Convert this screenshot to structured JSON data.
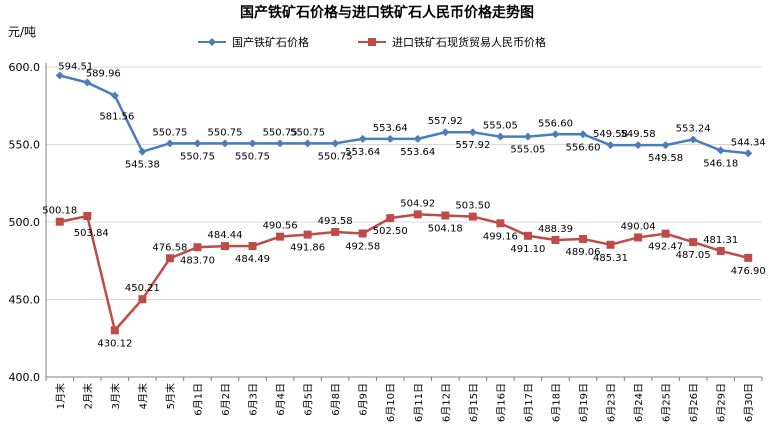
{
  "chart_data": {
    "type": "line",
    "title": "国产铁矿石价格与进口铁矿石人民币价格走势图",
    "ylabel": "元/吨",
    "xlabel": "",
    "ylim": [
      400,
      600
    ],
    "yticks": [
      "400.0",
      "450.0",
      "500.0",
      "550.0",
      "600.0"
    ],
    "grid": true,
    "legend_position": "top",
    "categories": [
      "1月末",
      "2月末",
      "3月末",
      "4月末",
      "5月末",
      "6月1日",
      "6月2日",
      "6月3日",
      "6月4日",
      "6月5日",
      "6月8日",
      "6月9日",
      "6月10日",
      "6月11日",
      "6月12日",
      "6月15日",
      "6月16日",
      "6月17日",
      "6月18日",
      "6月19日",
      "6月23日",
      "6月24日",
      "6月25日",
      "6月26日",
      "6月29日",
      "6月30日"
    ],
    "series": [
      {
        "name": "国产铁矿石价格",
        "color": "#4a7ebb",
        "marker": "diamond",
        "values": [
          594.51,
          589.96,
          581.56,
          545.38,
          550.75,
          550.75,
          550.75,
          550.75,
          550.75,
          550.75,
          550.75,
          553.64,
          553.64,
          553.64,
          557.92,
          557.92,
          555.05,
          555.05,
          556.6,
          556.6,
          549.58,
          549.58,
          549.58,
          553.24,
          546.18,
          544.34
        ],
        "labels": [
          "594.51",
          "589.96",
          "581.56",
          "545.38",
          "550.75",
          "550.75",
          "550.75",
          "550.75",
          "550.75",
          "550.75",
          "550.75",
          "553.64",
          "553.64",
          "553.64",
          "557.92",
          "557.92",
          "555.05",
          "555.05",
          "556.60",
          "556.60",
          "549.58",
          "549.58",
          "549.58",
          "553.24",
          "546.18",
          "544.34"
        ]
      },
      {
        "name": "进口铁矿石现货贸易人民币价格",
        "color": "#be4b48",
        "marker": "square",
        "values": [
          500.18,
          503.84,
          430.12,
          450.21,
          476.58,
          483.7,
          484.44,
          484.49,
          490.56,
          491.86,
          493.58,
          492.58,
          502.5,
          504.92,
          504.18,
          503.5,
          499.16,
          491.1,
          488.39,
          489.06,
          485.31,
          490.04,
          492.47,
          487.05,
          481.31,
          476.9
        ],
        "labels": [
          "500.18",
          "503.84",
          "430.12",
          "450.21",
          "476.58",
          "483.70",
          "484.44",
          "484.49",
          "490.56",
          "491.86",
          "493.58",
          "492.58",
          "502.50",
          "504.92",
          "504.18",
          "503.50",
          "499.16",
          "491.10",
          "488.39",
          "489.06",
          "485.31",
          "490.04",
          "492.47",
          "487.05",
          "481.31",
          "476.90"
        ]
      }
    ]
  }
}
